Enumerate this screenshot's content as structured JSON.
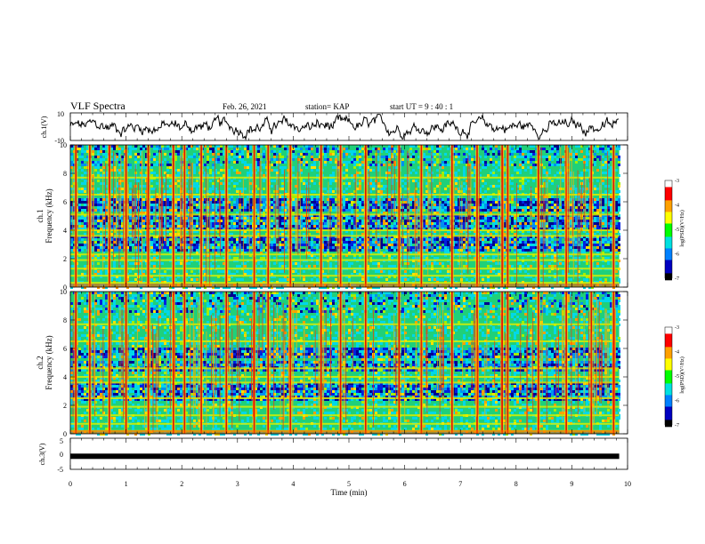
{
  "header": {
    "title": "VLF Spectra",
    "date": "Feb. 26, 2021",
    "station": "station= KAP",
    "start": "start  UT =   9 : 40 : 1"
  },
  "chart_data": [
    {
      "type": "line",
      "name": "ch1-waveform",
      "ylabel": "ch.1(V)",
      "ylim": [
        -10,
        10
      ],
      "y_ticklabels": [
        "10",
        "-10"
      ],
      "xlim": [
        0,
        10
      ]
    },
    {
      "type": "heatmap",
      "name": "ch1-spectrogram",
      "ylabel_channel": "ch.1",
      "ylabel": "Frequency (kHz)",
      "ylim": [
        0,
        10
      ],
      "y_ticks": [
        0,
        2,
        4,
        6,
        8,
        10
      ],
      "xlim": [
        0,
        9.85
      ],
      "colorbar": {
        "label": "log(PSD)(V²/Hz)",
        "range": [
          -7,
          -3
        ],
        "ticks": [
          "-7",
          "-6",
          "-5",
          "-4",
          "-3"
        ]
      },
      "bright_bands_khz": [
        0.3,
        0.8,
        1.3,
        1.9,
        2.3,
        3.6,
        4.0,
        5.1,
        6.5,
        7.7
      ],
      "dark_bands_khz": [
        2.9,
        3.3,
        4.4,
        4.8,
        5.8,
        6.0
      ],
      "impulse_times_min": [
        0.1,
        0.35,
        0.7,
        1.0,
        1.4,
        1.85,
        2.05,
        2.35,
        2.8,
        3.3,
        3.55,
        3.95,
        4.5,
        4.85,
        5.3,
        5.9,
        6.3,
        6.85,
        7.3,
        7.75,
        7.85,
        8.4,
        8.9,
        9.35,
        9.75
      ]
    },
    {
      "type": "heatmap",
      "name": "ch2-spectrogram",
      "ylabel_channel": "ch.2",
      "ylabel": "Frequency (kHz)",
      "ylim": [
        0,
        10
      ],
      "y_ticks": [
        0,
        2,
        4,
        6,
        8,
        10
      ],
      "xlim": [
        0,
        9.85
      ],
      "colorbar": {
        "label": "log(PSD)(V²/Hz)",
        "range": [
          -7,
          -3
        ],
        "ticks": [
          "-7",
          "-6",
          "-5",
          "-4",
          "-3"
        ]
      },
      "bright_bands_khz": [
        0.2,
        0.7,
        1.3,
        1.9,
        2.5,
        3.6,
        4.0,
        4.6,
        6.5,
        7.7
      ],
      "dark_bands_khz": [
        2.7,
        3.0,
        3.4,
        4.8,
        5.8
      ],
      "impulse_times_min": [
        0.1,
        0.35,
        0.7,
        1.0,
        1.4,
        1.85,
        2.05,
        2.35,
        2.8,
        3.3,
        3.55,
        3.95,
        4.5,
        4.85,
        5.3,
        5.9,
        6.3,
        6.85,
        7.3,
        7.75,
        7.85,
        8.4,
        8.9,
        9.35,
        9.75
      ]
    },
    {
      "type": "line",
      "name": "ch3-waveform",
      "ylabel": "ch.3(V)",
      "ylim": [
        -5,
        5
      ],
      "y_ticklabels": [
        "5",
        "0",
        "-5"
      ],
      "values_note": "flat near -0.8 V across full duration",
      "level": -0.8,
      "xlabel": "Time (min)",
      "xlim": [
        0,
        10
      ],
      "x_ticks": [
        "0",
        "1",
        "2",
        "3",
        "4",
        "5",
        "6",
        "7",
        "8",
        "9",
        "10"
      ]
    }
  ],
  "colors": {
    "spectro_bg": "#1fd07a",
    "low": "#0000b0",
    "mid": "#00d8e8",
    "high": "#ffd400",
    "peak": "#e00000"
  }
}
